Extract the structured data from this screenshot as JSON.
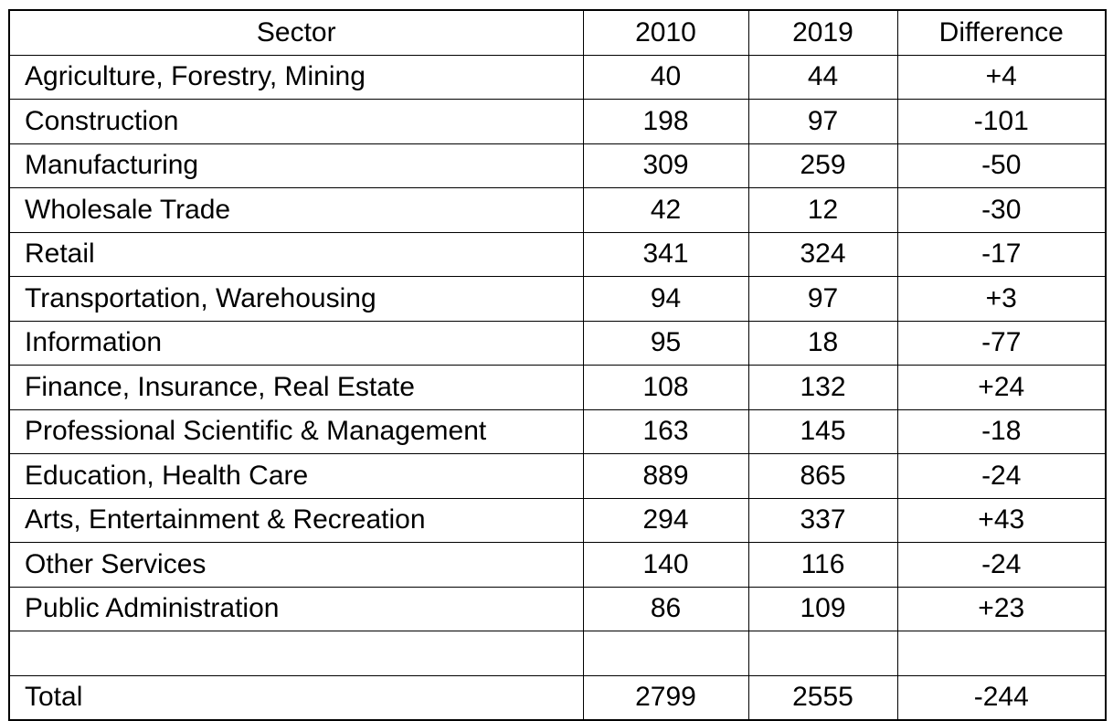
{
  "table": {
    "headers": {
      "sector": "Sector",
      "y2010": "2010",
      "y2019": "2019",
      "difference": "Difference"
    },
    "rows": [
      {
        "sector": "Agriculture, Forestry, Mining",
        "y2010": "40",
        "y2019": "44",
        "difference": "+4"
      },
      {
        "sector": "Construction",
        "y2010": "198",
        "y2019": "97",
        "difference": "-101"
      },
      {
        "sector": "Manufacturing",
        "y2010": "309",
        "y2019": "259",
        "difference": "-50"
      },
      {
        "sector": "Wholesale Trade",
        "y2010": "42",
        "y2019": "12",
        "difference": "-30"
      },
      {
        "sector": "Retail",
        "y2010": "341",
        "y2019": "324",
        "difference": "-17"
      },
      {
        "sector": "Transportation, Warehousing",
        "y2010": "94",
        "y2019": "97",
        "difference": "+3"
      },
      {
        "sector": "Information",
        "y2010": "95",
        "y2019": "18",
        "difference": "-77"
      },
      {
        "sector": "Finance, Insurance, Real Estate",
        "y2010": "108",
        "y2019": "132",
        "difference": "+24"
      },
      {
        "sector": "Professional Scientific & Management",
        "y2010": "163",
        "y2019": "145",
        "difference": "-18"
      },
      {
        "sector": "Education, Health Care",
        "y2010": "889",
        "y2019": "865",
        "difference": "-24"
      },
      {
        "sector": "Arts, Entertainment & Recreation",
        "y2010": "294",
        "y2019": "337",
        "difference": "+43"
      },
      {
        "sector": "Other Services",
        "y2010": "140",
        "y2019": "116",
        "difference": "-24"
      },
      {
        "sector": "Public Administration",
        "y2010": "86",
        "y2019": "109",
        "difference": "+23"
      }
    ],
    "total": {
      "sector": "Total",
      "y2010": "2799",
      "y2019": "2555",
      "difference": "-244"
    }
  }
}
